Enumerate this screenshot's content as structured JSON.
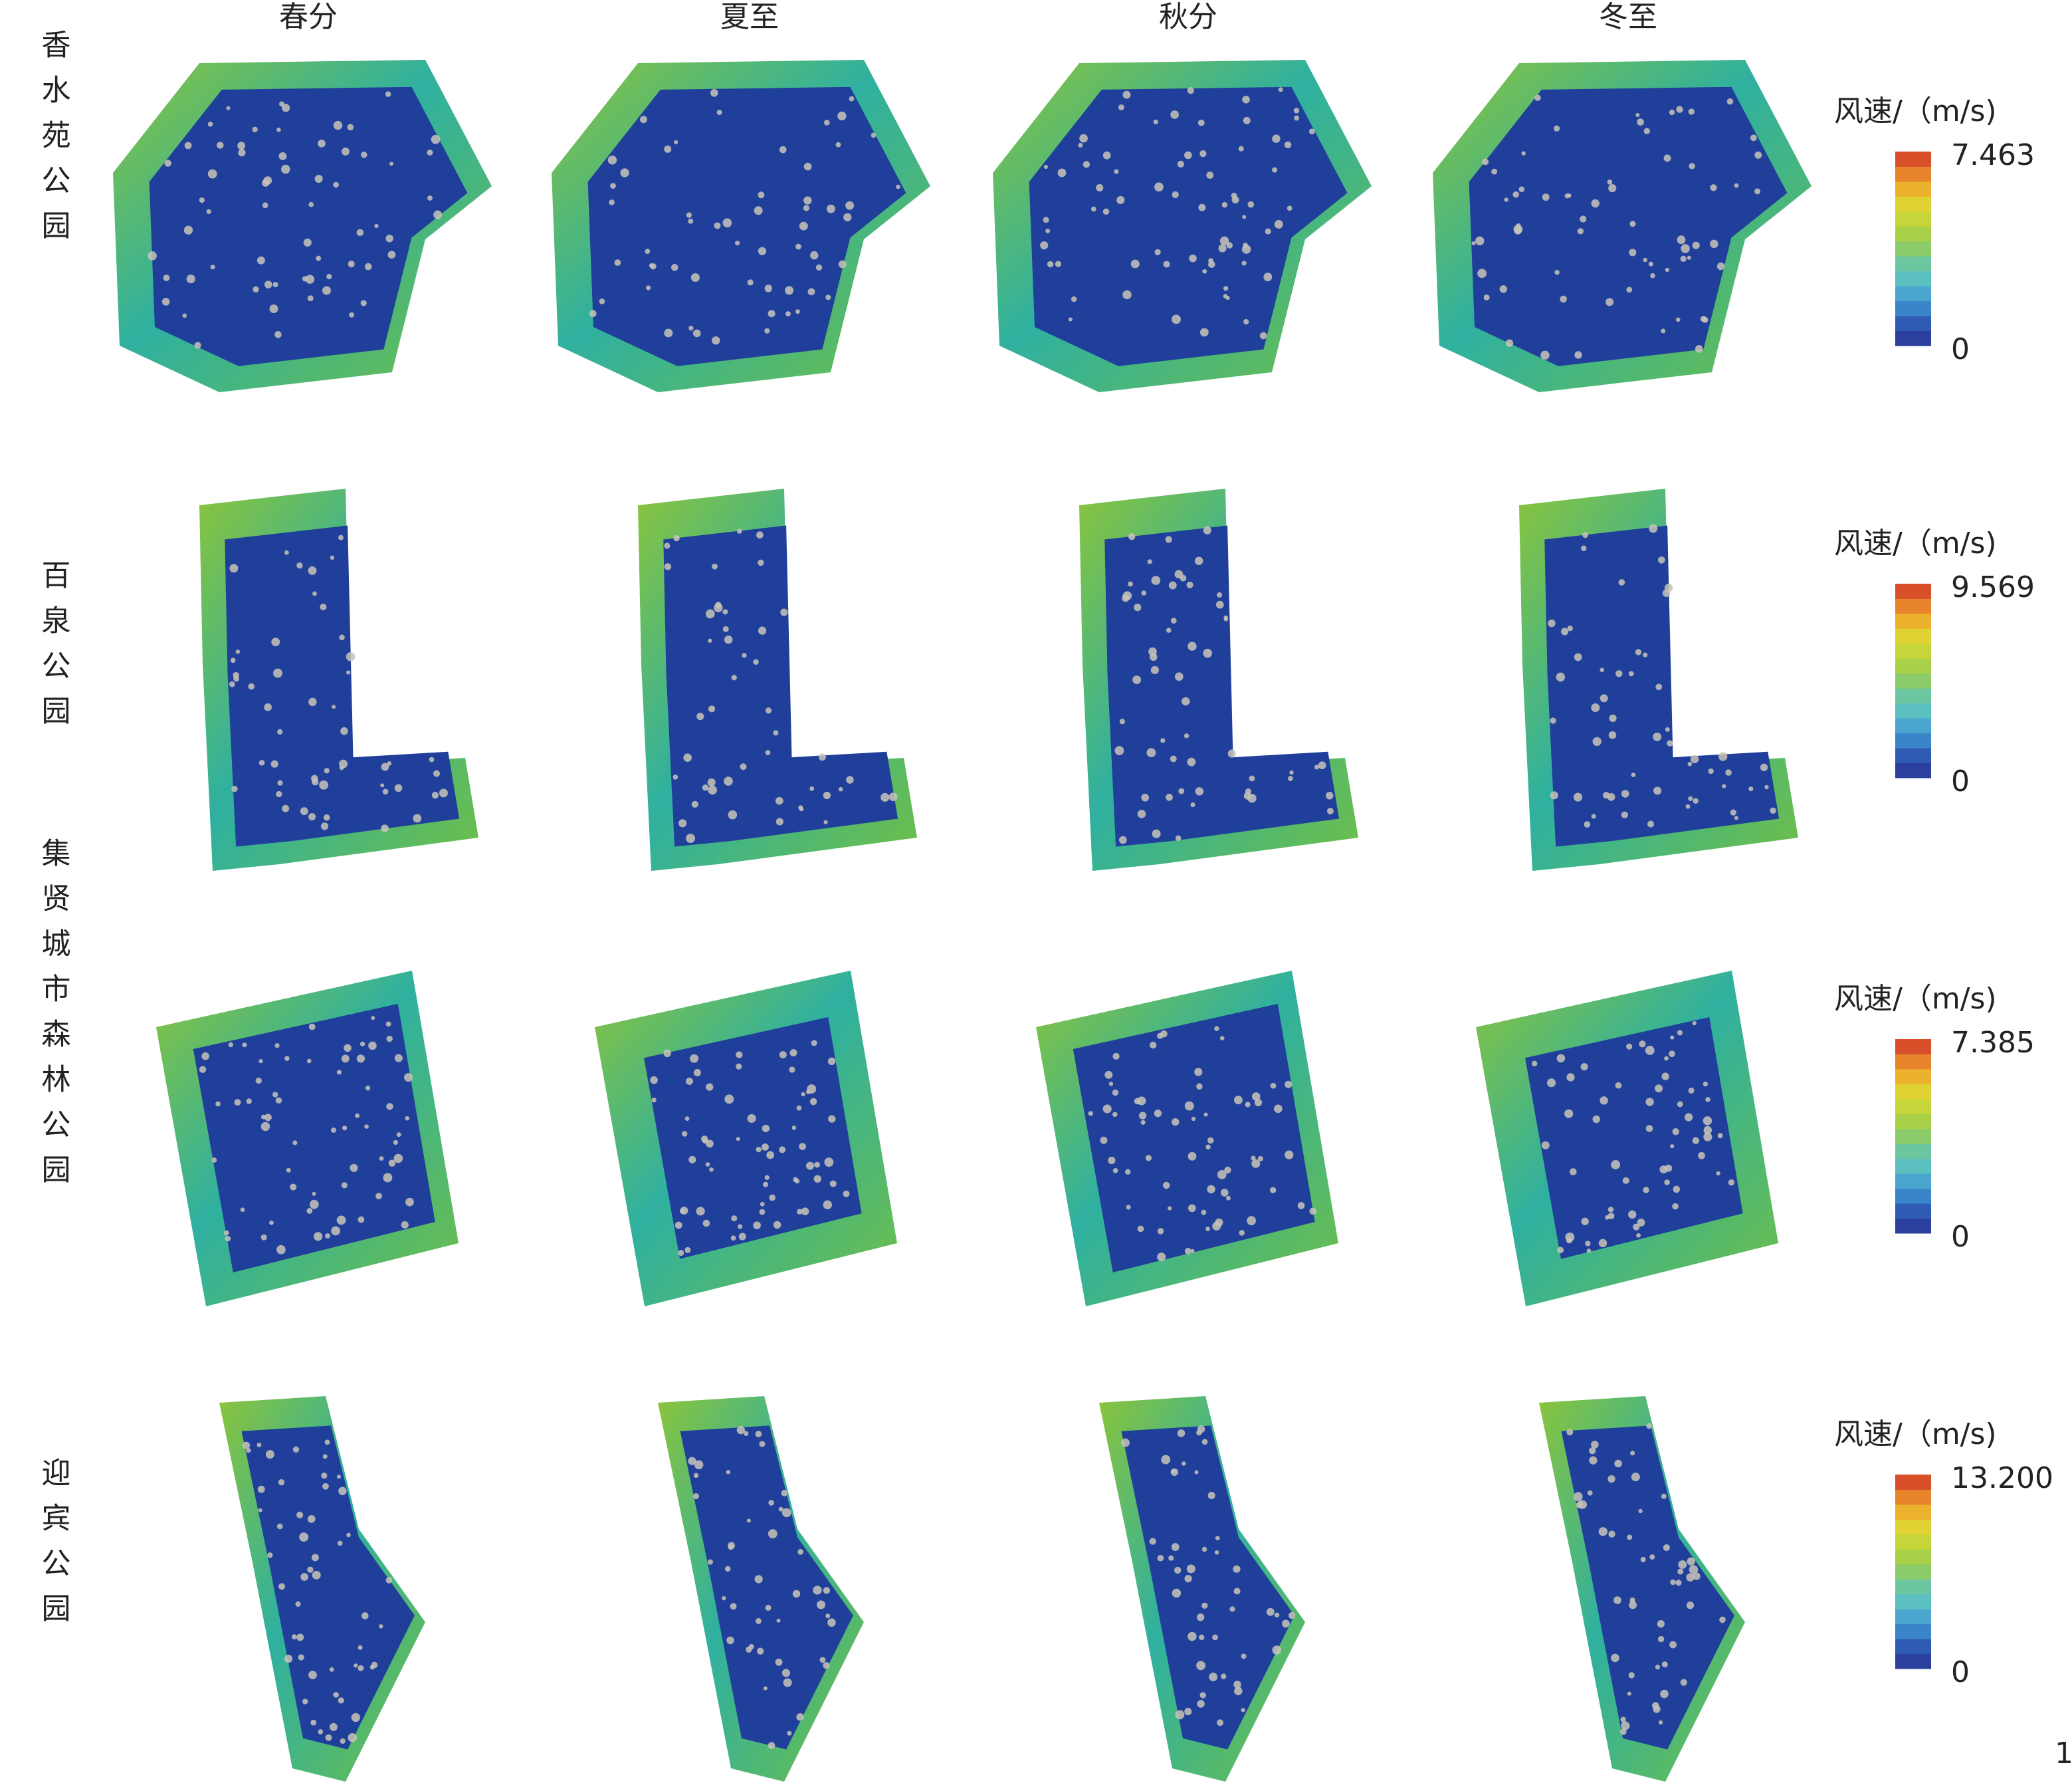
{
  "columns": [
    "春分",
    "夏至",
    "秋分",
    "冬至"
  ],
  "rows": [
    {
      "label": "香水苑公园",
      "legend_title": "风速/（m/s)",
      "max": "7.463",
      "min": "0"
    },
    {
      "label": "百泉公园",
      "legend_title": "风速/（m/s)",
      "max": "9.569",
      "min": "0"
    },
    {
      "label": "集贤城市森林公园",
      "legend_title": "风速/（m/s)",
      "max": "7.385",
      "min": "0"
    },
    {
      "label": "迎宾公园",
      "legend_title": "风速/（m/s)",
      "max": "13.200",
      "min": "0"
    }
  ],
  "figure_number": "1"
}
